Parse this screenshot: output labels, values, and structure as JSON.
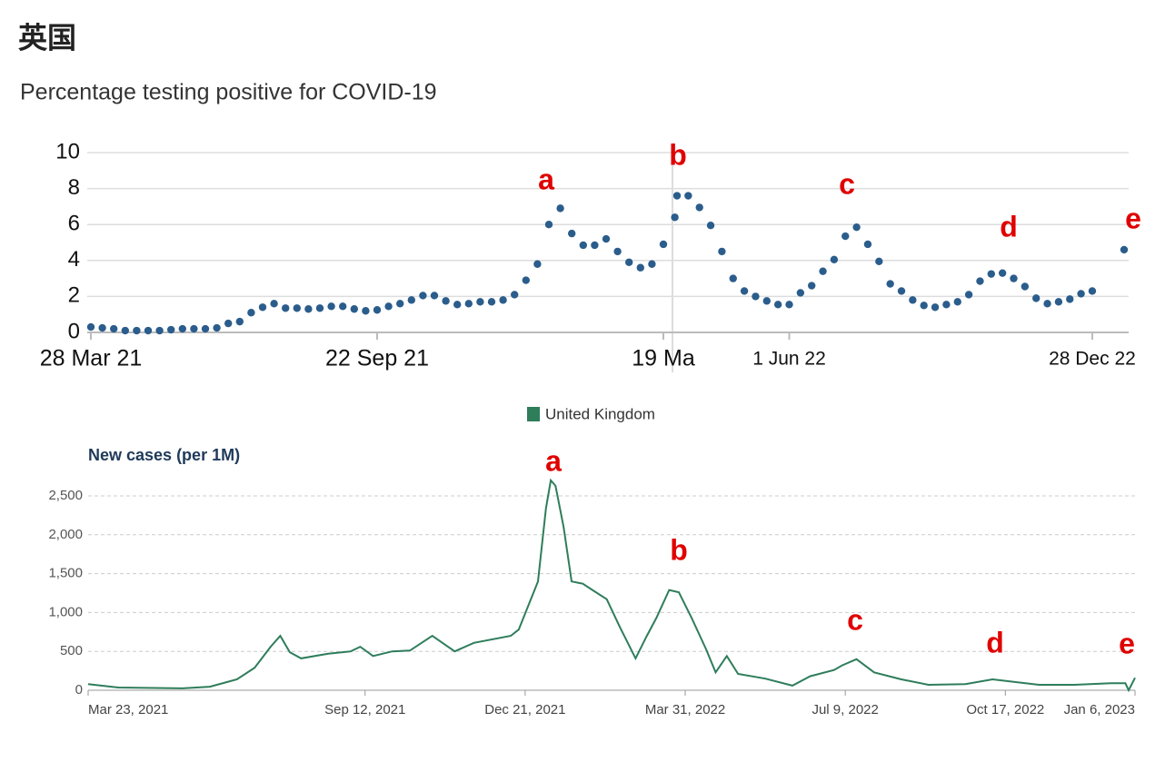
{
  "header": {
    "title": "英国"
  },
  "chart_data": [
    {
      "type": "scatter",
      "title": "Percentage testing positive for COVID-19",
      "color": "#2b5d8c",
      "categories": [
        "28 Mar 21",
        null,
        null,
        null,
        null,
        null,
        null,
        null,
        null,
        null,
        null,
        null,
        null,
        null,
        null,
        null,
        null,
        null,
        null,
        null,
        null,
        null,
        null,
        null,
        null,
        "22 Sep 21",
        null,
        null,
        null,
        null,
        null,
        null,
        null,
        null,
        null,
        null,
        null,
        null,
        null,
        null,
        null,
        null,
        null,
        null,
        null,
        null,
        null,
        null,
        null,
        null,
        "19 Ma",
        null,
        null,
        null,
        null,
        null,
        null,
        null,
        null,
        null,
        null,
        null,
        "1 Jun 22",
        null,
        null,
        null,
        null,
        null,
        null,
        null,
        null,
        null,
        null,
        null,
        null,
        null,
        null,
        null,
        null,
        null,
        null,
        null,
        null,
        null,
        null,
        null,
        null,
        null,
        null,
        "28 Dec 22",
        null
      ],
      "values": [
        0.3,
        0.25,
        0.2,
        0.1,
        0.1,
        0.1,
        0.1,
        0.15,
        0.2,
        0.2,
        0.2,
        0.25,
        0.5,
        0.6,
        1.1,
        1.4,
        1.6,
        1.35,
        1.35,
        1.3,
        1.35,
        1.45,
        1.45,
        1.3,
        1.2,
        1.25,
        1.45,
        1.6,
        1.8,
        2.05,
        2.05,
        1.75,
        1.55,
        1.6,
        1.7,
        1.7,
        1.8,
        2.1,
        2.9,
        3.8,
        6.0,
        6.9,
        5.5,
        4.85,
        4.85,
        5.2,
        4.5,
        3.9,
        3.6,
        3.8,
        4.9,
        6.4,
        7.6,
        7.6,
        6.95,
        5.95,
        4.5,
        3.0,
        2.3,
        2.0,
        1.75,
        1.55,
        1.55,
        2.2,
        2.6,
        3.4,
        4.05,
        5.35,
        5.85,
        4.9,
        3.95,
        2.7,
        2.3,
        1.8,
        1.5,
        1.4,
        1.55,
        1.7,
        2.1,
        2.85,
        3.25,
        3.3,
        3.0,
        2.55,
        1.9,
        1.6,
        1.7,
        1.85,
        2.15,
        2.3,
        4.6
      ],
      "ylim": [
        0,
        10
      ],
      "yticks": [
        0,
        2,
        4,
        6,
        8,
        10
      ],
      "grid": true,
      "annotations": [
        "a",
        "b",
        "c",
        "d",
        "e"
      ],
      "annotation_color": "#e00000"
    },
    {
      "type": "line",
      "y_label": "New cases (per 1M)",
      "legend": "top",
      "x": [
        "2021-03-23",
        "2021-04-11",
        "2021-05-21",
        "2021-06-07",
        "2021-06-24",
        "2021-07-05",
        "2021-07-15",
        "2021-07-21",
        "2021-07-27",
        "2021-08-03",
        "2021-08-20",
        "2021-09-03",
        "2021-09-09",
        "2021-09-17",
        "2021-09-29",
        "2021-10-10",
        "2021-10-24",
        "2021-11-07",
        "2021-11-19",
        "2021-12-12",
        "2021-12-17",
        "2021-12-29",
        "2022-01-03",
        "2022-01-06",
        "2022-01-09",
        "2022-01-14",
        "2022-01-19",
        "2022-01-26",
        "2022-02-01",
        "2022-02-10",
        "2022-02-18",
        "2022-02-28",
        "2022-03-07",
        "2022-03-13",
        "2022-03-21",
        "2022-03-27",
        "2022-04-04",
        "2022-04-13",
        "2022-04-19",
        "2022-04-26",
        "2022-05-03",
        "2022-05-20",
        "2022-06-06",
        "2022-06-17",
        "2022-07-02",
        "2022-07-07",
        "2022-07-16",
        "2022-07-27",
        "2022-08-13",
        "2022-08-30",
        "2022-09-22",
        "2022-10-09",
        "2022-11-07",
        "2022-11-29",
        "2022-12-22",
        "2022-12-31",
        "2023-01-02",
        "2023-01-06"
      ],
      "series": [
        {
          "name": "United Kingdom",
          "color": "#2e7d5b",
          "values": [
            80,
            35,
            25,
            45,
            140,
            290,
            560,
            700,
            490,
            410,
            470,
            500,
            560,
            440,
            500,
            510,
            700,
            500,
            610,
            700,
            780,
            1400,
            2340,
            2700,
            2630,
            2100,
            1400,
            1370,
            1290,
            1170,
            820,
            410,
            700,
            930,
            1290,
            1260,
            930,
            530,
            230,
            440,
            210,
            150,
            60,
            180,
            260,
            320,
            400,
            230,
            140,
            70,
            80,
            140,
            70,
            70,
            90,
            90,
            0,
            160
          ]
        }
      ],
      "xlim": [
        "2021-03-23",
        "2023-01-06"
      ],
      "xticks": [
        {
          "value": "2021-03-23",
          "label": "Mar 23, 2021"
        },
        {
          "value": "2021-09-12",
          "label": "Sep 12, 2021"
        },
        {
          "value": "2021-12-21",
          "label": "Dec 21, 2021"
        },
        {
          "value": "2022-03-31",
          "label": "Mar 31, 2022"
        },
        {
          "value": "2022-07-09",
          "label": "Jul 9, 2022"
        },
        {
          "value": "2022-10-17",
          "label": "Oct 17, 2022"
        },
        {
          "value": "2023-01-06",
          "label": "Jan 6, 2023"
        }
      ],
      "ylim": [
        0,
        2500
      ],
      "yticks": [
        0,
        {
          "value": 500,
          "label": "500"
        },
        {
          "value": 1000,
          "label": "1,000"
        },
        {
          "value": 1500,
          "label": "1,500"
        },
        {
          "value": 2000,
          "label": "2,000"
        },
        {
          "value": 2500,
          "label": "2,500"
        }
      ],
      "grid": true,
      "annotations": [
        "a",
        "b",
        "c",
        "d",
        "e"
      ],
      "annotation_color": "#e00000"
    }
  ]
}
